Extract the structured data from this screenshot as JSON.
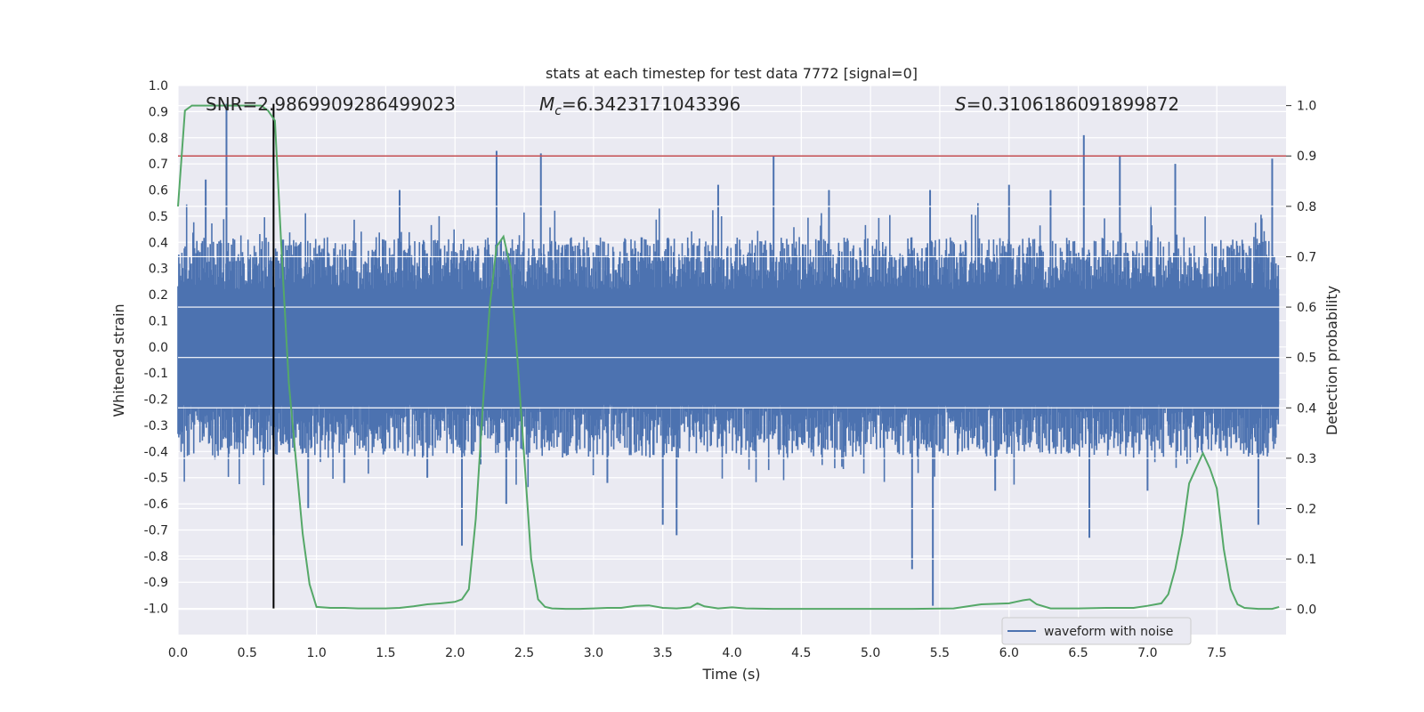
{
  "chart_data": {
    "type": "line",
    "title": "stats at each timestep for test data 7772 [signal=0]",
    "xlabel": "Time (s)",
    "ylabel_left": "Whitened strain",
    "ylabel_right": "Detection probability",
    "xlim": [
      0.0,
      8.0
    ],
    "ylim_left": [
      -1.1,
      1.0
    ],
    "ylim_right": [
      -0.05,
      1.04
    ],
    "x_ticks": [
      "0.0",
      "0.5",
      "1.0",
      "1.5",
      "2.0",
      "2.5",
      "3.0",
      "3.5",
      "4.0",
      "4.5",
      "5.0",
      "5.5",
      "6.0",
      "6.5",
      "7.0",
      "7.5"
    ],
    "y_ticks_left": [
      "1.0",
      "0.9",
      "0.8",
      "0.7",
      "0.6",
      "0.5",
      "0.4",
      "0.3",
      "0.2",
      "0.1",
      "0.0",
      "-0.1",
      "-0.2",
      "-0.3",
      "-0.4",
      "-0.5",
      "-0.6",
      "-0.7",
      "-0.8",
      "-0.9",
      "-1.0"
    ],
    "y_ticks_right": [
      "1.0",
      "0.9",
      "0.8",
      "0.7",
      "0.6",
      "0.5",
      "0.4",
      "0.3",
      "0.2",
      "0.1",
      "0.0"
    ],
    "grid": true,
    "annotations": {
      "snr": "SNR=2.9869909286499023",
      "mc_symbol": "M",
      "mc_sub": "c",
      "mc_value": "=6.3423171043396",
      "s_symbol": "S",
      "s_value": "=0.3106186091899872"
    },
    "threshold_line": {
      "y_right": 0.9,
      "color": "#c44e52"
    },
    "vertical_line": {
      "x": 0.69,
      "y_from": -1.0,
      "y_to": 0.93,
      "color": "#000000"
    },
    "waveform": {
      "name": "waveform with noise",
      "color": "#4c72b0",
      "band_low": -0.42,
      "band_high": 0.42,
      "spikes": [
        [
          0.35,
          0.93
        ],
        [
          0.2,
          0.64
        ],
        [
          0.69,
          -0.72
        ],
        [
          0.94,
          -0.62
        ],
        [
          2.05,
          -0.76
        ],
        [
          2.3,
          0.75
        ],
        [
          2.62,
          0.74
        ],
        [
          2.37,
          -0.6
        ],
        [
          3.5,
          -0.68
        ],
        [
          3.6,
          -0.72
        ],
        [
          4.3,
          0.73
        ],
        [
          5.3,
          -0.85
        ],
        [
          5.43,
          0.6
        ],
        [
          5.45,
          -0.99
        ],
        [
          6.3,
          0.6
        ],
        [
          6.54,
          0.81
        ],
        [
          6.58,
          -0.73
        ],
        [
          6.8,
          0.73
        ],
        [
          7.2,
          0.7
        ],
        [
          7.9,
          0.72
        ],
        [
          7.8,
          -0.68
        ],
        [
          1.6,
          0.6
        ],
        [
          3.9,
          0.62
        ],
        [
          6.0,
          0.62
        ],
        [
          4.7,
          0.6
        ],
        [
          1.2,
          -0.52
        ],
        [
          3.1,
          -0.52
        ],
        [
          5.9,
          -0.55
        ],
        [
          7.0,
          -0.55
        ],
        [
          1.8,
          -0.5
        ]
      ]
    },
    "detection_probability": {
      "color": "#55a868",
      "x": [
        0.0,
        0.05,
        0.1,
        0.15,
        0.2,
        0.3,
        0.4,
        0.5,
        0.6,
        0.65,
        0.7,
        0.75,
        0.8,
        0.85,
        0.9,
        0.95,
        1.0,
        1.1,
        1.2,
        1.3,
        1.4,
        1.5,
        1.6,
        1.7,
        1.8,
        1.9,
        2.0,
        2.05,
        2.1,
        2.15,
        2.2,
        2.25,
        2.3,
        2.35,
        2.4,
        2.45,
        2.5,
        2.55,
        2.6,
        2.65,
        2.7,
        2.8,
        2.9,
        3.0,
        3.1,
        3.2,
        3.3,
        3.4,
        3.5,
        3.6,
        3.7,
        3.75,
        3.8,
        3.9,
        4.0,
        4.1,
        4.3,
        4.5,
        4.8,
        5.0,
        5.3,
        5.6,
        5.8,
        6.0,
        6.05,
        6.1,
        6.15,
        6.2,
        6.3,
        6.5,
        6.7,
        6.9,
        7.0,
        7.1,
        7.15,
        7.2,
        7.25,
        7.3,
        7.35,
        7.4,
        7.45,
        7.5,
        7.55,
        7.6,
        7.65,
        7.7,
        7.8,
        7.9,
        7.95
      ],
      "y": [
        0.8,
        0.99,
        1.0,
        1.0,
        1.0,
        1.0,
        1.0,
        1.0,
        1.0,
        0.99,
        0.97,
        0.7,
        0.45,
        0.3,
        0.15,
        0.05,
        0.005,
        0.003,
        0.003,
        0.002,
        0.002,
        0.002,
        0.003,
        0.006,
        0.01,
        0.012,
        0.015,
        0.02,
        0.04,
        0.18,
        0.4,
        0.6,
        0.72,
        0.74,
        0.68,
        0.5,
        0.3,
        0.1,
        0.02,
        0.005,
        0.002,
        0.001,
        0.001,
        0.002,
        0.003,
        0.003,
        0.007,
        0.008,
        0.003,
        0.002,
        0.004,
        0.012,
        0.006,
        0.002,
        0.004,
        0.002,
        0.001,
        0.001,
        0.001,
        0.001,
        0.001,
        0.002,
        0.01,
        0.012,
        0.015,
        0.018,
        0.02,
        0.01,
        0.002,
        0.002,
        0.003,
        0.003,
        0.007,
        0.012,
        0.03,
        0.08,
        0.15,
        0.25,
        0.28,
        0.31,
        0.28,
        0.24,
        0.12,
        0.04,
        0.01,
        0.003,
        0.001,
        0.001,
        0.005
      ]
    },
    "legend": {
      "location": "lower-right",
      "entries": [
        "waveform with noise"
      ]
    }
  }
}
